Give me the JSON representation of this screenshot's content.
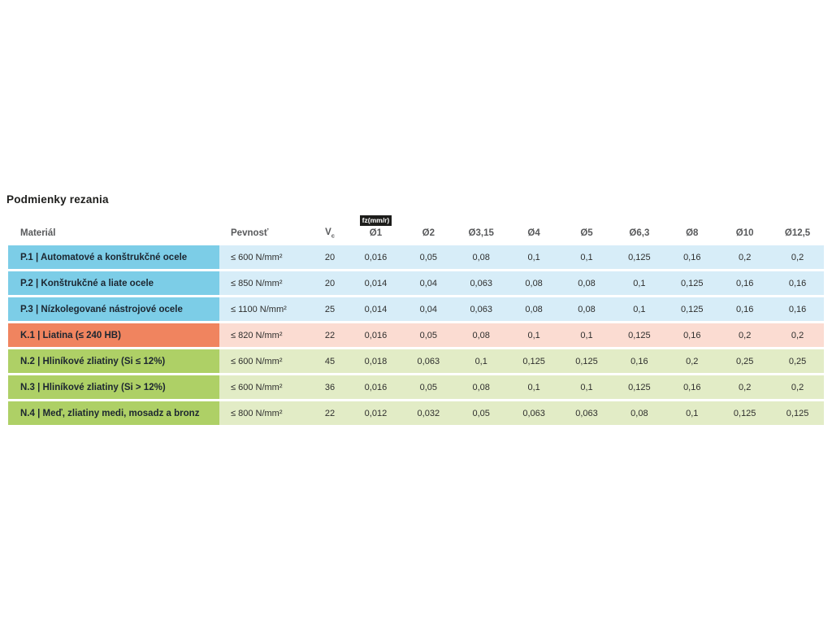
{
  "page": {
    "title": "Podmienky rezania"
  },
  "table": {
    "headers": {
      "material": "Materiál",
      "strength": "Pevnosť",
      "vc": "V",
      "vc_sub": "c",
      "fz_badge": "fz(mm/r)",
      "diameters": [
        "Ø1",
        "Ø2",
        "Ø3,15",
        "Ø4",
        "Ø5",
        "Ø6,3",
        "Ø8",
        "Ø10",
        "Ø12,5"
      ]
    },
    "rows": [
      {
        "group": "P",
        "material": "P.1 | Automatové a konštrukčné ocele",
        "strength": "≤ 600 N/mm²",
        "vc": "20",
        "fz": [
          "0,016",
          "0,05",
          "0,08",
          "0,1",
          "0,1",
          "0,125",
          "0,16",
          "0,2",
          "0,2"
        ]
      },
      {
        "group": "P",
        "material": "P.2 | Konštrukčné a liate ocele",
        "strength": "≤ 850 N/mm²",
        "vc": "20",
        "fz": [
          "0,014",
          "0,04",
          "0,063",
          "0,08",
          "0,08",
          "0,1",
          "0,125",
          "0,16",
          "0,16"
        ]
      },
      {
        "group": "P",
        "material": "P.3 | Nízkolegované nástrojové ocele",
        "strength": "≤ 1100 N/mm²",
        "vc": "25",
        "fz": [
          "0,014",
          "0,04",
          "0,063",
          "0,08",
          "0,08",
          "0,1",
          "0,125",
          "0,16",
          "0,16"
        ]
      },
      {
        "group": "K",
        "material": "K.1 | Liatina (≤ 240 HB)",
        "strength": "≤ 820 N/mm²",
        "vc": "22",
        "fz": [
          "0,016",
          "0,05",
          "0,08",
          "0,1",
          "0,1",
          "0,125",
          "0,16",
          "0,2",
          "0,2"
        ]
      },
      {
        "group": "N",
        "material": "N.2 | Hliníkové zliatiny (Si ≤ 12%)",
        "strength": "≤ 600 N/mm²",
        "vc": "45",
        "fz": [
          "0,018",
          "0,063",
          "0,1",
          "0,125",
          "0,125",
          "0,16",
          "0,2",
          "0,25",
          "0,25"
        ]
      },
      {
        "group": "N",
        "material": "N.3 | Hliníkové zliatiny (Si > 12%)",
        "strength": "≤ 600 N/mm²",
        "vc": "36",
        "fz": [
          "0,016",
          "0,05",
          "0,08",
          "0,1",
          "0,1",
          "0,125",
          "0,16",
          "0,2",
          "0,2"
        ]
      },
      {
        "group": "N",
        "material": "N.4 | Meď, zliatiny medi, mosadz a bronz",
        "strength": "≤ 800 N/mm²",
        "vc": "22",
        "fz": [
          "0,012",
          "0,032",
          "0,05",
          "0,063",
          "0,063",
          "0,08",
          "0,1",
          "0,125",
          "0,125"
        ]
      }
    ],
    "colors": {
      "blue": "#7ccde7",
      "blue_light": "#d7edf8",
      "orange": "#f0845f",
      "orange_light": "#fbdcd2",
      "green": "#aed066",
      "green_light": "#e2ecc6"
    }
  }
}
